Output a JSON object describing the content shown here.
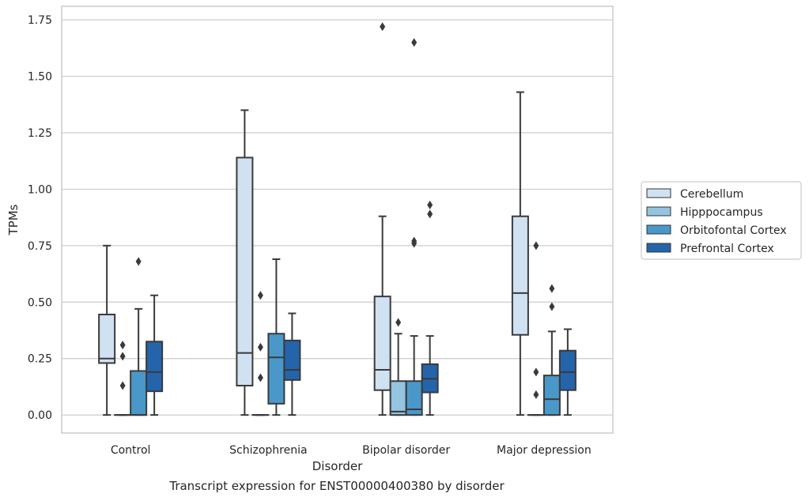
{
  "caption": "Transcript expression for ENST00000400380 by disorder",
  "chart_data": {
    "type": "boxplot",
    "xlabel": "Disorder",
    "ylabel": "TPMs",
    "ylim": [
      -0.08,
      1.81
    ],
    "yticks": [
      0.0,
      0.25,
      0.5,
      0.75,
      1.0,
      1.25,
      1.5,
      1.75
    ],
    "ytick_labels": [
      "0.00",
      "0.25",
      "0.50",
      "0.75",
      "1.00",
      "1.25",
      "1.50",
      "1.75"
    ],
    "grid": "horizontal",
    "legend_position": "right",
    "categories": [
      "Control",
      "Schizophrenia",
      "Bipolar disorder",
      "Major depression"
    ],
    "series": [
      {
        "name": "Cerebellum",
        "color": "#d0e1f2",
        "boxes": [
          {
            "min": 0.0,
            "q1": 0.23,
            "median": 0.25,
            "q3": 0.445,
            "max": 0.75,
            "outliers": []
          },
          {
            "min": 0.0,
            "q1": 0.13,
            "median": 0.275,
            "q3": 1.14,
            "max": 1.35,
            "outliers": []
          },
          {
            "min": 0.0,
            "q1": 0.11,
            "median": 0.2,
            "q3": 0.525,
            "max": 0.88,
            "outliers": [
              1.72
            ]
          },
          {
            "min": 0.0,
            "q1": 0.355,
            "median": 0.54,
            "q3": 0.88,
            "max": 1.43,
            "outliers": []
          }
        ]
      },
      {
        "name": "Hipppocampus",
        "color": "#94c4df",
        "boxes": [
          {
            "min": 0.0,
            "q1": 0.0,
            "median": 0.0,
            "q3": 0.0,
            "max": 0.0,
            "outliers": [
              0.13,
              0.26,
              0.31
            ]
          },
          {
            "min": 0.0,
            "q1": 0.0,
            "median": 0.0,
            "q3": 0.0,
            "max": 0.0,
            "outliers": [
              0.165,
              0.3,
              0.53
            ]
          },
          {
            "min": 0.0,
            "q1": 0.0,
            "median": 0.015,
            "q3": 0.15,
            "max": 0.36,
            "outliers": [
              0.41
            ]
          },
          {
            "min": 0.0,
            "q1": 0.0,
            "median": 0.0,
            "q3": 0.0,
            "max": 0.0,
            "outliers": [
              0.09,
              0.19,
              0.75
            ]
          }
        ]
      },
      {
        "name": "Orbitofontal Cortex",
        "color": "#4a98c9",
        "boxes": [
          {
            "min": 0.0,
            "q1": 0.0,
            "median": 0.0,
            "q3": 0.195,
            "max": 0.47,
            "outliers": [
              0.68
            ]
          },
          {
            "min": 0.0,
            "q1": 0.05,
            "median": 0.255,
            "q3": 0.36,
            "max": 0.69,
            "outliers": []
          },
          {
            "min": 0.0,
            "q1": 0.0,
            "median": 0.025,
            "q3": 0.15,
            "max": 0.35,
            "outliers": [
              1.65,
              0.76,
              0.77
            ]
          },
          {
            "min": 0.0,
            "q1": 0.0,
            "median": 0.07,
            "q3": 0.175,
            "max": 0.37,
            "outliers": [
              0.48,
              0.56
            ]
          }
        ]
      },
      {
        "name": "Prefrontal Cortex",
        "color": "#2464ab",
        "boxes": [
          {
            "min": 0.0,
            "q1": 0.105,
            "median": 0.19,
            "q3": 0.325,
            "max": 0.53,
            "outliers": []
          },
          {
            "min": 0.0,
            "q1": 0.155,
            "median": 0.2,
            "q3": 0.33,
            "max": 0.45,
            "outliers": []
          },
          {
            "min": 0.0,
            "q1": 0.1,
            "median": 0.16,
            "q3": 0.225,
            "max": 0.35,
            "outliers": [
              0.89,
              0.93
            ]
          },
          {
            "min": 0.0,
            "q1": 0.11,
            "median": 0.19,
            "q3": 0.285,
            "max": 0.38,
            "outliers": []
          }
        ]
      }
    ]
  }
}
